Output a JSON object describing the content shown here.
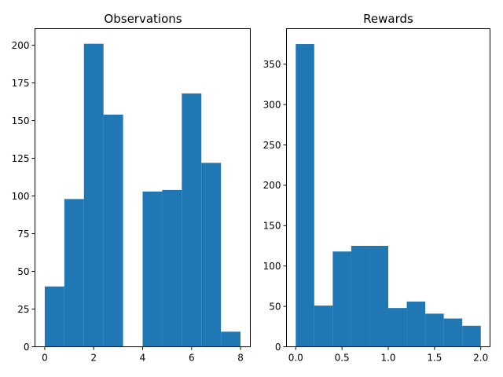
{
  "chart_data": [
    {
      "type": "bar",
      "title": "Observations",
      "xlabel": "",
      "ylabel": "",
      "xlim": [
        -0.4,
        8.4
      ],
      "ylim": [
        0,
        211
      ],
      "xticks": [
        0,
        2,
        4,
        6,
        8
      ],
      "xtick_labels": [
        "0",
        "2",
        "4",
        "6",
        "8"
      ],
      "yticks": [
        0,
        25,
        50,
        75,
        100,
        125,
        150,
        175,
        200
      ],
      "ytick_labels": [
        "0",
        "25",
        "50",
        "75",
        "100",
        "125",
        "150",
        "175",
        "200"
      ],
      "bin_edges": [
        0,
        0.8,
        1.6,
        2.4,
        3.2,
        4.0,
        4.8,
        5.6,
        6.4,
        7.2,
        8.0
      ],
      "values": [
        40,
        98,
        201,
        154,
        0,
        103,
        104,
        168,
        122,
        10
      ],
      "color": "#1f77b4"
    },
    {
      "type": "bar",
      "title": "Rewards",
      "xlabel": "",
      "ylabel": "",
      "xlim": [
        -0.1,
        2.1
      ],
      "ylim": [
        0,
        394
      ],
      "xticks": [
        0.0,
        0.5,
        1.0,
        1.5,
        2.0
      ],
      "xtick_labels": [
        "0.0",
        "0.5",
        "1.0",
        "1.5",
        "2.0"
      ],
      "yticks": [
        0,
        50,
        100,
        150,
        200,
        250,
        300,
        350
      ],
      "ytick_labels": [
        "0",
        "50",
        "100",
        "150",
        "200",
        "250",
        "300",
        "350"
      ],
      "bin_edges": [
        0,
        0.2,
        0.4,
        0.6,
        0.8,
        1.0,
        1.2,
        1.4,
        1.6,
        1.8,
        2.0
      ],
      "values": [
        375,
        51,
        118,
        125,
        125,
        48,
        56,
        41,
        35,
        26
      ],
      "color": "#1f77b4"
    }
  ]
}
